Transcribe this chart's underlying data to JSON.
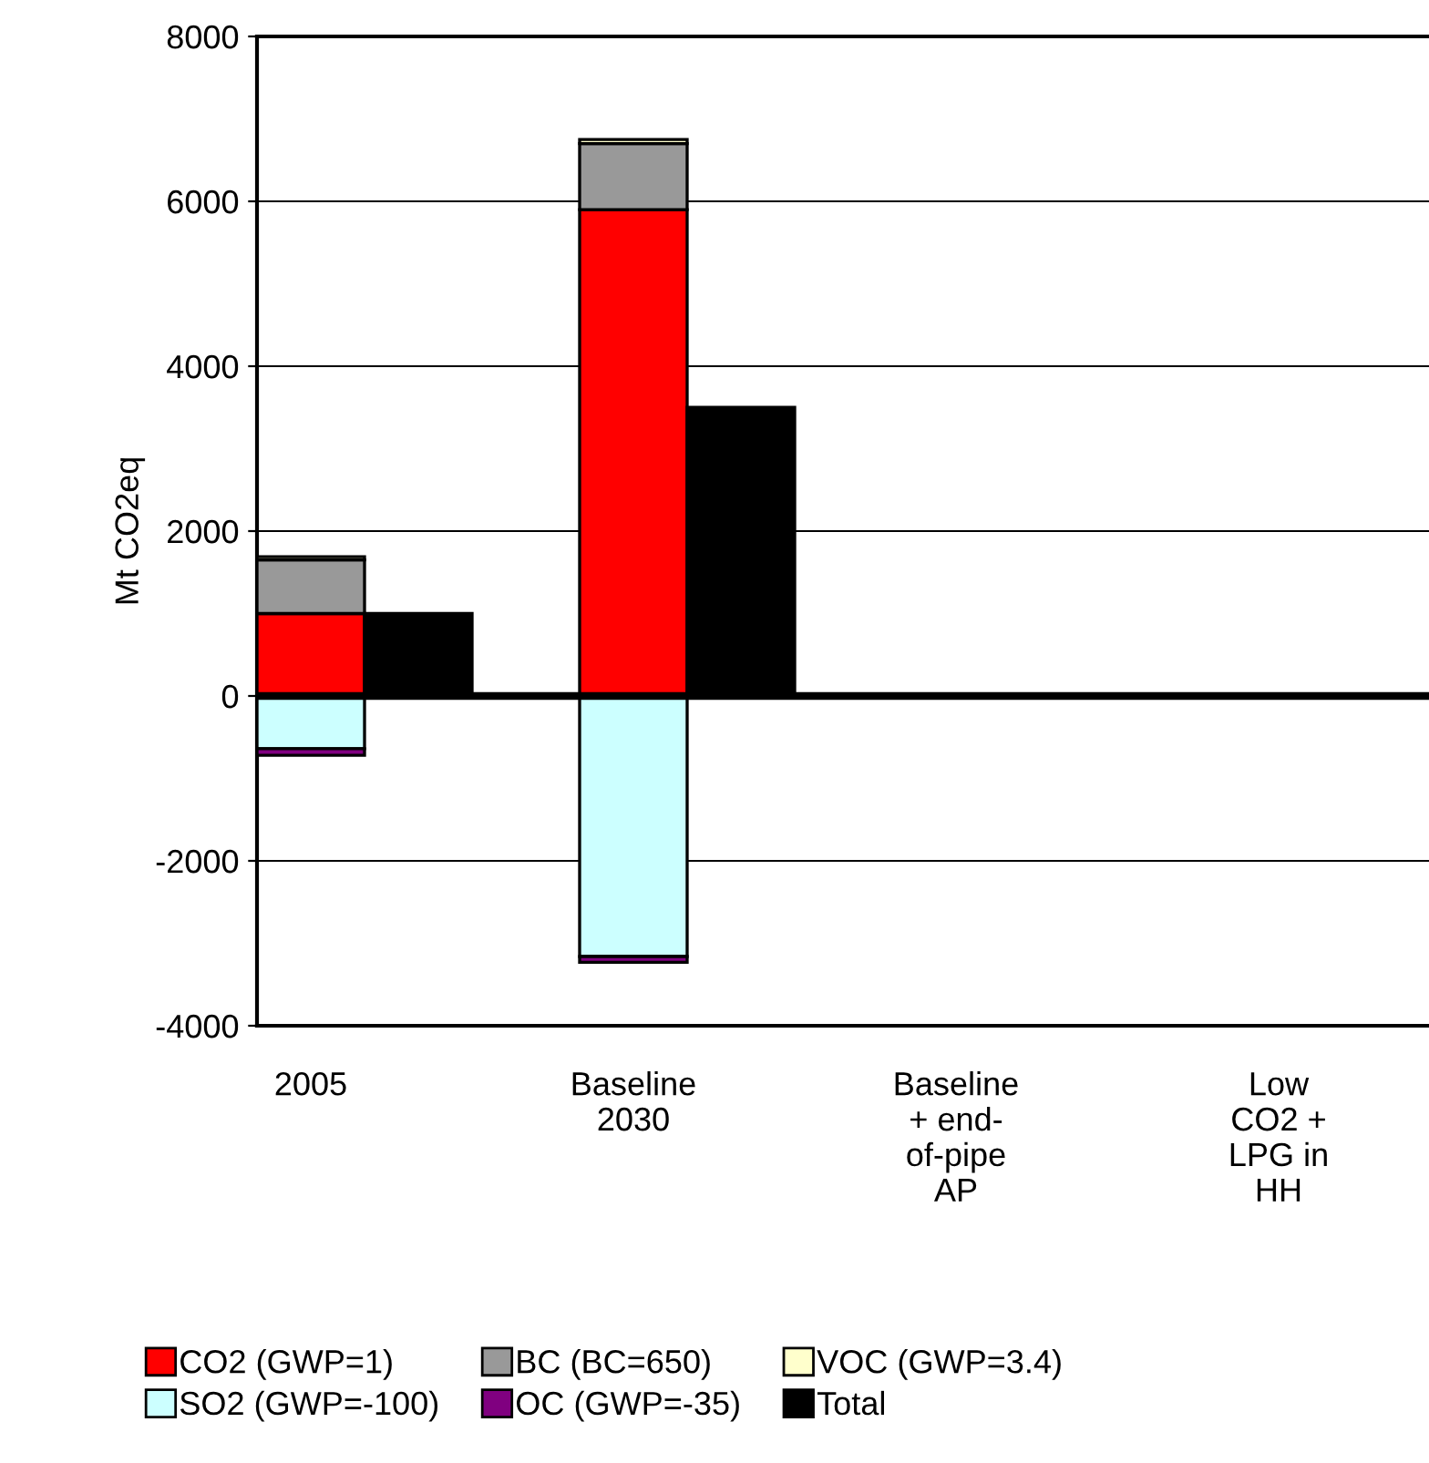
{
  "chart_data": {
    "type": "bar",
    "stacked": true,
    "ylabel": "Mt CO2eq",
    "categories": [
      "2005",
      null,
      "Baseline\n2030",
      null,
      "Baseline\n+ end-\nof-pipe\nAP",
      null,
      "Low\nCO2 +\nLPG in\nHH",
      null
    ],
    "series": [
      {
        "name": "CO2 (GWP=1)",
        "color": "#ff0000",
        "values": [
          1000,
          null,
          5900,
          null,
          null,
          null,
          null,
          null
        ]
      },
      {
        "name": "BC (BC=650)",
        "color": "#999999",
        "values": [
          650,
          null,
          800,
          null,
          null,
          null,
          null,
          null
        ]
      },
      {
        "name": "VOC (GWP=3.4)",
        "color": "#ffffcc",
        "values": [
          40,
          null,
          50,
          null,
          null,
          null,
          null,
          null
        ]
      },
      {
        "name": "SO2 (GWP=-100)",
        "color": "#ccffff",
        "values": [
          -640,
          null,
          -3160,
          null,
          null,
          null,
          null,
          null
        ]
      },
      {
        "name": "OC (GWP=-35)",
        "color": "#800080",
        "values": [
          -80,
          null,
          -70,
          null,
          null,
          null,
          null,
          null
        ]
      },
      {
        "name": "Total",
        "color": "#000000",
        "values": [
          null,
          1000,
          null,
          3500,
          null,
          null,
          null,
          null
        ]
      }
    ],
    "ylim": [
      -4000,
      8000
    ],
    "yticks": [
      {
        "value": -4000,
        "label": "-4000"
      },
      {
        "value": -2000,
        "label": "-2000"
      },
      0,
      2000,
      4000,
      6000,
      8000
    ],
    "grid": "y",
    "legend": "bottom"
  }
}
